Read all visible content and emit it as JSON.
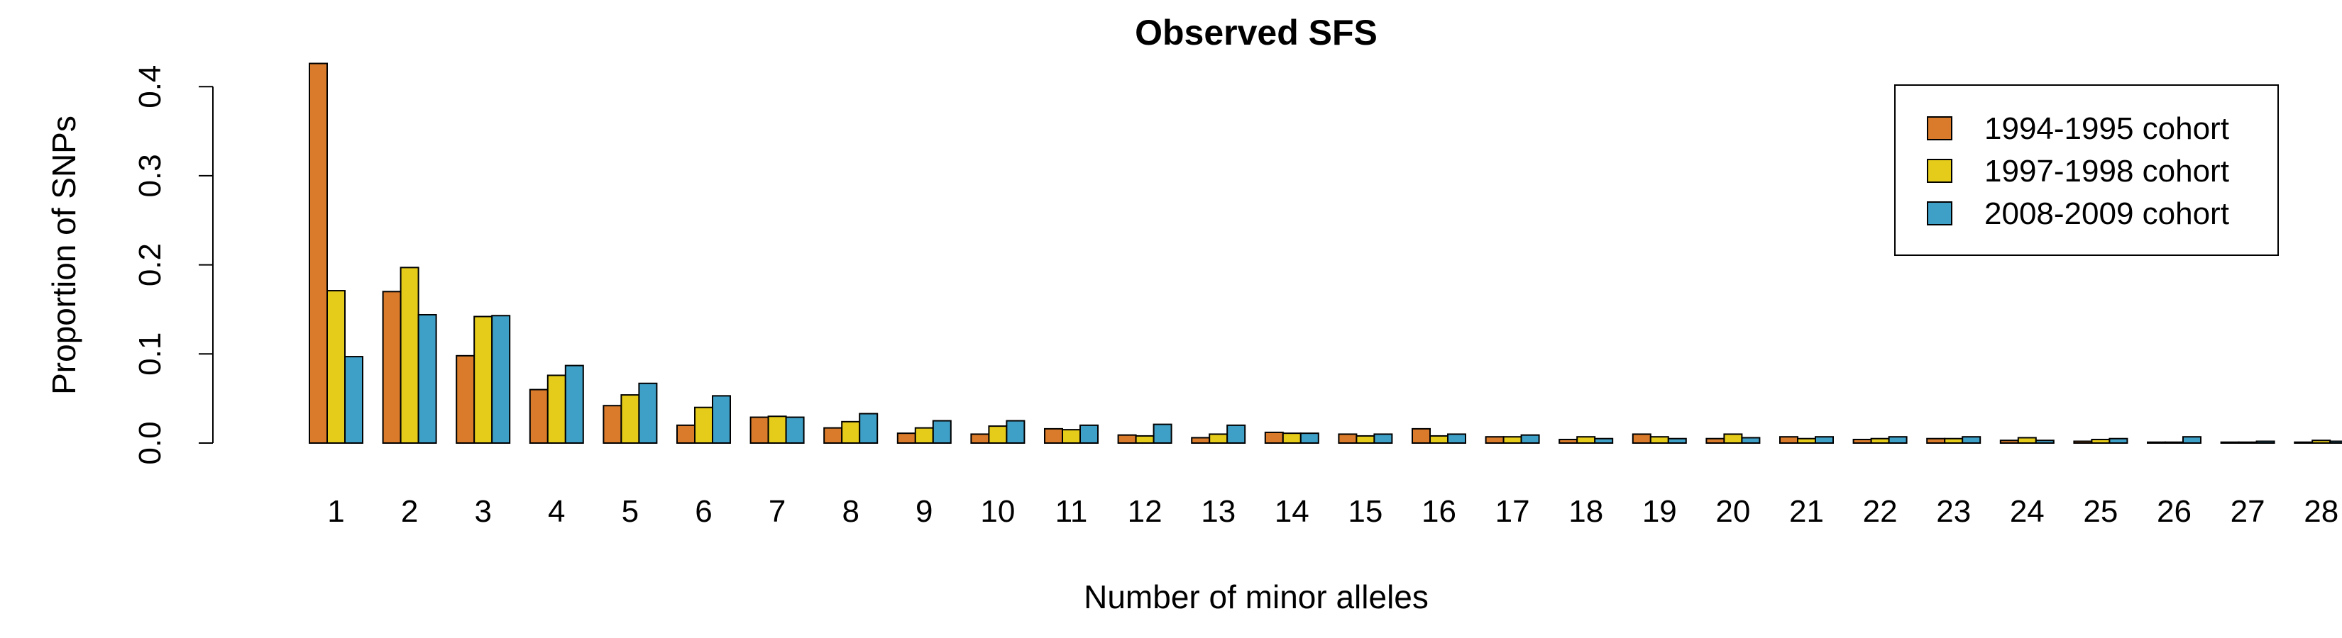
{
  "chart_data": {
    "type": "bar",
    "title": "Observed SFS",
    "xlabel": "Number of minor alleles",
    "ylabel": "Proportion of SNPs",
    "ylim": [
      0,
      0.43
    ],
    "yticks": [
      "0.0",
      "0.1",
      "0.2",
      "0.3",
      "0.4"
    ],
    "grid": false,
    "legend_position": "top-right",
    "categories": [
      "1",
      "2",
      "3",
      "4",
      "5",
      "6",
      "7",
      "8",
      "9",
      "10",
      "11",
      "12",
      "13",
      "14",
      "15",
      "16",
      "17",
      "18",
      "19",
      "20",
      "21",
      "22",
      "23",
      "24",
      "25",
      "26",
      "27",
      "28"
    ],
    "series": [
      {
        "name": "1994-1995 cohort",
        "color": "#D97B2B",
        "values": [
          0.426,
          0.17,
          0.098,
          0.06,
          0.042,
          0.02,
          0.029,
          0.017,
          0.011,
          0.01,
          0.016,
          0.009,
          0.006,
          0.012,
          0.01,
          0.016,
          0.007,
          0.004,
          0.01,
          0.005,
          0.007,
          0.004,
          0.005,
          0.003,
          0.002,
          0.001,
          0.001,
          0.001
        ]
      },
      {
        "name": "1997-1998 cohort",
        "color": "#E6CC1A",
        "values": [
          0.171,
          0.197,
          0.142,
          0.076,
          0.054,
          0.04,
          0.03,
          0.024,
          0.017,
          0.019,
          0.015,
          0.008,
          0.01,
          0.011,
          0.008,
          0.008,
          0.007,
          0.007,
          0.007,
          0.01,
          0.005,
          0.005,
          0.005,
          0.006,
          0.004,
          0.001,
          0.001,
          0.003
        ]
      },
      {
        "name": "2008-2009 cohort",
        "color": "#3FA0C7",
        "values": [
          0.097,
          0.144,
          0.143,
          0.087,
          0.067,
          0.053,
          0.029,
          0.033,
          0.025,
          0.025,
          0.02,
          0.021,
          0.02,
          0.011,
          0.01,
          0.01,
          0.009,
          0.005,
          0.005,
          0.006,
          0.007,
          0.007,
          0.007,
          0.003,
          0.005,
          0.007,
          0.002,
          0.002
        ]
      }
    ]
  }
}
